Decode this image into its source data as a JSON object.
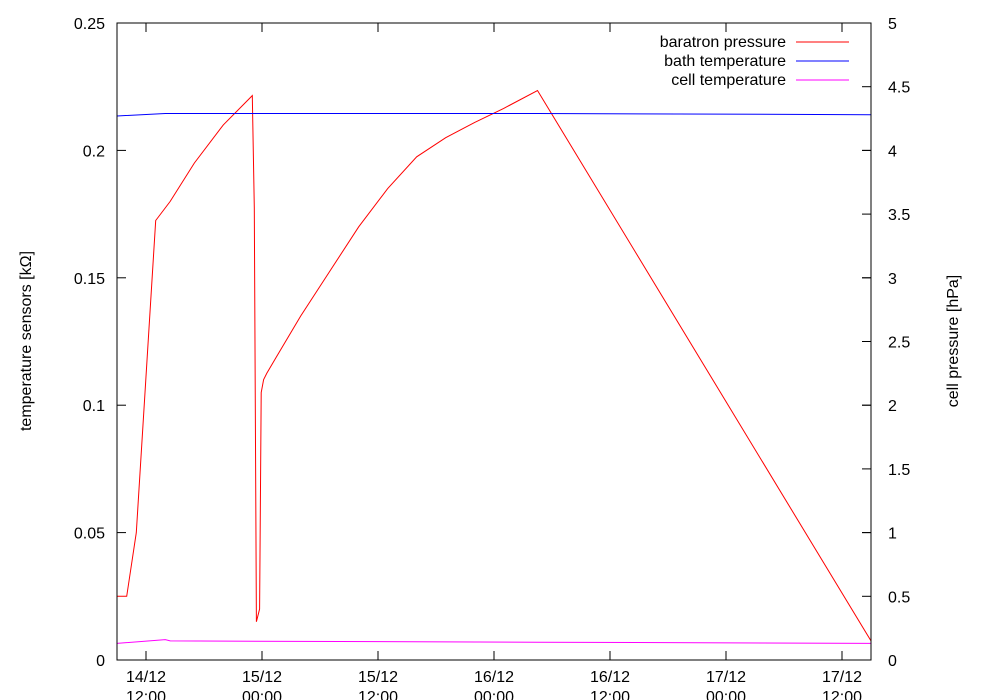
{
  "chart_data": {
    "type": "line",
    "title": "",
    "xlabel": "",
    "ylabel": "temperature sensors [kΩ]",
    "y2label": "cell pressure [hPa]",
    "xlim": [
      "2013-12-14 09:00",
      "2013-12-17 15:00"
    ],
    "ylim": [
      0,
      0.25
    ],
    "y2lim": [
      0,
      5
    ],
    "grid": false,
    "legend_position": "top-right",
    "x_ticks": [
      {
        "date": "14/12",
        "time": "12:00",
        "at": "2013-12-14 12:00"
      },
      {
        "date": "15/12",
        "time": "00:00",
        "at": "2013-12-15 00:00"
      },
      {
        "date": "15/12",
        "time": "12:00",
        "at": "2013-12-15 12:00"
      },
      {
        "date": "16/12",
        "time": "00:00",
        "at": "2013-12-16 00:00"
      },
      {
        "date": "16/12",
        "time": "12:00",
        "at": "2013-12-16 12:00"
      },
      {
        "date": "17/12",
        "time": "00:00",
        "at": "2013-12-17 00:00"
      },
      {
        "date": "17/12",
        "time": "12:00",
        "at": "2013-12-17 12:00"
      }
    ],
    "y_ticks": [
      "0",
      "0.05",
      "0.1",
      "0.15",
      "0.2",
      "0.25"
    ],
    "y2_ticks": [
      "0",
      "0.5",
      "1",
      "1.5",
      "2",
      "2.5",
      "3",
      "3.5",
      "4",
      "4.5",
      "5"
    ],
    "series": [
      {
        "name": "baratron pressure",
        "color": "#ff0000",
        "axis": "y2",
        "x": [
          "2013-12-14 09:00",
          "2013-12-14 10:00",
          "2013-12-14 11:00",
          "2013-12-14 13:00",
          "2013-12-14 14:30",
          "2013-12-14 17:00",
          "2013-12-14 20:00",
          "2013-12-14 23:00",
          "2013-12-14 23:12",
          "2013-12-14 23:25",
          "2013-12-14 23:45",
          "2013-12-14 23:55",
          "2013-12-15 00:10",
          "2013-12-15 00:30",
          "2013-12-15 01:30",
          "2013-12-15 04:00",
          "2013-12-15 07:00",
          "2013-12-15 10:00",
          "2013-12-15 13:00",
          "2013-12-15 16:00",
          "2013-12-15 19:00",
          "2013-12-15 22:00",
          "2013-12-16 01:00",
          "2013-12-16 04:30",
          "2013-12-17 15:00"
        ],
        "y": [
          0.5,
          0.5,
          1.0,
          3.45,
          3.6,
          3.9,
          4.2,
          4.43,
          3.55,
          0.3,
          0.4,
          2.1,
          2.2,
          2.25,
          2.38,
          2.7,
          3.05,
          3.4,
          3.7,
          3.95,
          4.1,
          4.22,
          4.33,
          4.47,
          0.15
        ]
      },
      {
        "name": "bath temperature",
        "color": "#0000ff",
        "axis": "y",
        "x": [
          "2013-12-14 09:00",
          "2013-12-14 14:00",
          "2013-12-16 04:30",
          "2013-12-17 15:00"
        ],
        "y": [
          0.2135,
          0.2145,
          0.2145,
          0.214
        ]
      },
      {
        "name": "cell temperature",
        "color": "#ff00ff",
        "axis": "y",
        "x": [
          "2013-12-14 09:00",
          "2013-12-14 14:00",
          "2013-12-14 14:30",
          "2013-12-16 04:30",
          "2013-12-17 15:00"
        ],
        "y": [
          0.0065,
          0.008,
          0.0075,
          0.007,
          0.0065
        ]
      }
    ]
  }
}
